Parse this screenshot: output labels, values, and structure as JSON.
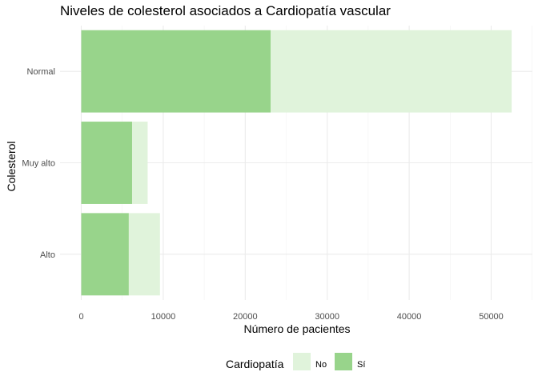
{
  "chart_data": {
    "type": "bar",
    "orientation": "horizontal",
    "stacked": true,
    "title": "Niveles de colesterol asociados a Cardiopatía vascular",
    "xlabel": "Número de pacientes",
    "ylabel": "Colesterol",
    "categories": [
      "Normal",
      "Muy alto",
      "Alto"
    ],
    "series": [
      {
        "name": "Sí",
        "values": [
          23100,
          6200,
          5800
        ],
        "color": "#98d48b"
      },
      {
        "name": "No",
        "values": [
          29400,
          1900,
          3800
        ],
        "color": "#e0f3db"
      }
    ],
    "xlim": [
      0,
      55000
    ],
    "xticks": [
      0,
      10000,
      20000,
      30000,
      40000,
      50000
    ],
    "grid": true,
    "legend": {
      "title": "Cardiopatía",
      "placement": "bottom",
      "entries": [
        {
          "label": "No",
          "color": "#e0f3db"
        },
        {
          "label": "Sí",
          "color": "#98d48b"
        }
      ]
    }
  }
}
